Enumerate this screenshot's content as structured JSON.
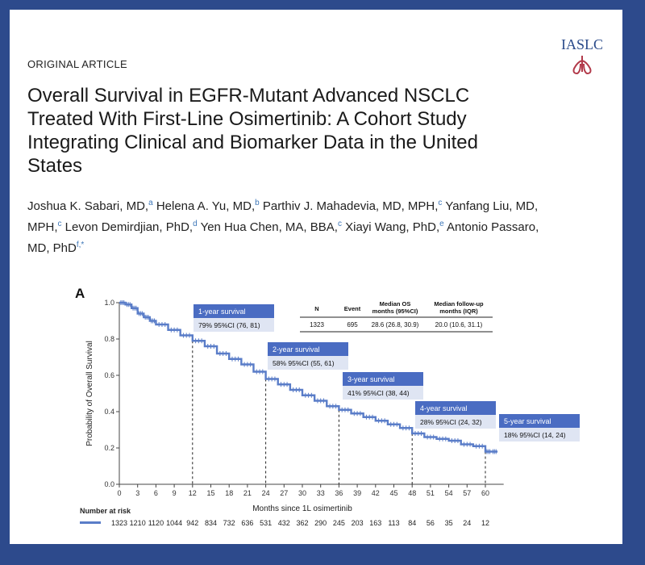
{
  "article": {
    "type": "ORIGINAL ARTICLE",
    "logo_text": "IASLC",
    "title": "Overall Survival in EGFR-Mutant Advanced NSCLC Treated With First-Line Osimertinib: A Cohort Study Integrating Clinical and Biomarker Data in the United States",
    "authors": [
      {
        "name": "Joshua K. Sabari, MD,",
        "sup": "a"
      },
      {
        "name": "Helena A. Yu, MD,",
        "sup": "b"
      },
      {
        "name": "Parthiv J. Mahadevia, MD, MPH,",
        "sup": "c"
      },
      {
        "name": "Yanfang Liu, MD, MPH,",
        "sup": "c"
      },
      {
        "name": "Levon Demirdjian, PhD,",
        "sup": "d"
      },
      {
        "name": "Yen Hua Chen, MA, BBA,",
        "sup": "c"
      },
      {
        "name": "Xiayi Wang, PhD,",
        "sup": "e"
      },
      {
        "name": "Antonio Passaro, MD, PhD",
        "sup": "f,*"
      }
    ]
  },
  "figure": {
    "panel_label": "A",
    "summary_table": {
      "headers": [
        "N",
        "Event",
        "Median OS months (95%CI)",
        "Median follow-up months (IQR)"
      ],
      "values": [
        "1323",
        "695",
        "28.6 (26.8, 30.9)",
        "20.0 (10.6, 31.1)"
      ]
    },
    "number_at_risk_label": "Number at risk",
    "colors": {
      "curve": "#5a7dc8",
      "box": "#4a6cc2",
      "box_light": "#dfe5f3"
    }
  },
  "chart_data": {
    "type": "line",
    "title": "",
    "xlabel": "Months since 1L osimertinib",
    "ylabel": "Probability of Overall Survival",
    "xlim": [
      0,
      63
    ],
    "ylim": [
      0,
      1.0
    ],
    "x_ticks": [
      0,
      3,
      6,
      9,
      12,
      15,
      18,
      21,
      24,
      27,
      30,
      33,
      36,
      39,
      42,
      45,
      48,
      51,
      54,
      57,
      60
    ],
    "y_ticks": [
      "0.0",
      "0.2",
      "0.4",
      "0.6",
      "0.8",
      "1.0"
    ],
    "series": [
      {
        "name": "Overall survival",
        "x": [
          0,
          1,
          2,
          3,
          4,
          5,
          6,
          8,
          10,
          12,
          14,
          16,
          18,
          20,
          22,
          24,
          26,
          28,
          30,
          32,
          34,
          36,
          38,
          40,
          42,
          44,
          46,
          48,
          50,
          52,
          54,
          56,
          58,
          60,
          61,
          62
        ],
        "y": [
          1.0,
          0.99,
          0.97,
          0.94,
          0.92,
          0.9,
          0.88,
          0.85,
          0.82,
          0.79,
          0.76,
          0.72,
          0.69,
          0.66,
          0.62,
          0.58,
          0.55,
          0.52,
          0.49,
          0.46,
          0.43,
          0.41,
          0.39,
          0.37,
          0.35,
          0.33,
          0.31,
          0.28,
          0.26,
          0.25,
          0.24,
          0.22,
          0.21,
          0.18,
          0.18,
          0.18
        ]
      }
    ],
    "annotations": [
      {
        "month": 12,
        "value": 0.79,
        "title": "1-year survival",
        "text": "79%  95%CI (76, 81)"
      },
      {
        "month": 24,
        "value": 0.58,
        "title": "2-year survival",
        "text": "58%  95%CI (55, 61)"
      },
      {
        "month": 36,
        "value": 0.41,
        "title": "3-year survival",
        "text": "41%  95%CI (38, 44)"
      },
      {
        "month": 48,
        "value": 0.28,
        "title": "4-year survival",
        "text": "28%  95%CI (24, 32)"
      },
      {
        "month": 60,
        "value": 0.18,
        "title": "5-year survival",
        "text": "18%  95%CI (14, 24)"
      }
    ],
    "number_at_risk": [
      1323,
      1210,
      1120,
      1044,
      942,
      834,
      732,
      636,
      531,
      432,
      362,
      290,
      245,
      203,
      163,
      113,
      84,
      56,
      35,
      24,
      12
    ]
  }
}
